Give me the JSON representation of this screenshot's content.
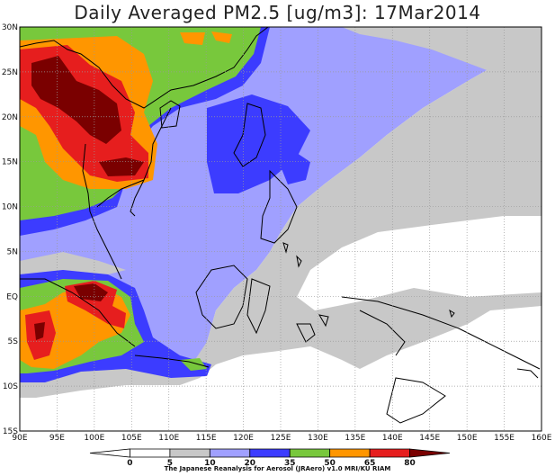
{
  "title": "Daily Averaged PM2.5 [ug/m3]: 17Mar2014",
  "lat_labels": [
    "30N",
    "25N",
    "20N",
    "15N",
    "10N",
    "5N",
    "EQ",
    "5S",
    "10S",
    "15S"
  ],
  "lon_labels": [
    "90E",
    "95E",
    "100E",
    "105E",
    "110E",
    "115E",
    "120E",
    "125E",
    "130E",
    "135E",
    "140E",
    "145E",
    "150E",
    "155E",
    "160E"
  ],
  "colorbar": {
    "ticks": [
      "0",
      "5",
      "10",
      "20",
      "35",
      "50",
      "65",
      "80"
    ],
    "colors": [
      "#ffffff",
      "#ffffff",
      "#c8c8c8",
      "#a0a0ff",
      "#3c3cff",
      "#78c83c",
      "#ff9600",
      "#e61e1e",
      "#7a0000"
    ]
  },
  "credit": "The Japanese Reanalysis for Aerosol (JRAero) v1.0 MRI/KU RIAM"
}
